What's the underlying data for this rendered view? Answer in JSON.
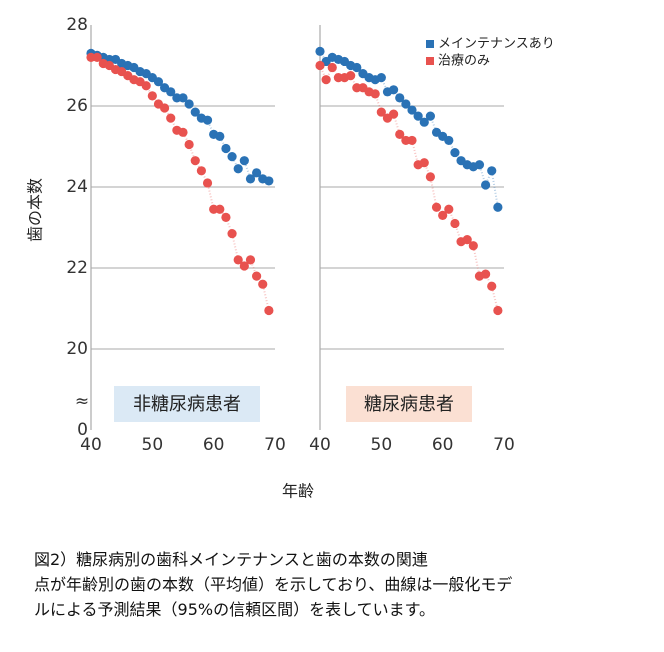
{
  "chart_data": {
    "type": "scatter",
    "ylabel": "歯の本数",
    "xlabel": "年齢",
    "ylim": [
      0,
      28
    ],
    "yticks": [
      0,
      20,
      22,
      24,
      26,
      28
    ],
    "axis_break": {
      "from": 0,
      "to": 20,
      "symbol": "≈"
    },
    "xlim": [
      40,
      70
    ],
    "xticks": [
      40,
      50,
      60,
      70
    ],
    "grid": true,
    "legend": "top-right",
    "x": [
      40,
      41,
      42,
      43,
      44,
      45,
      46,
      47,
      48,
      49,
      50,
      51,
      52,
      53,
      54,
      55,
      56,
      57,
      58,
      59,
      60,
      61,
      62,
      63,
      64,
      65,
      66,
      67,
      68,
      69
    ],
    "panels": [
      {
        "title": "非糖尿病患者",
        "box_color": "#dbe9f5",
        "series": [
          {
            "name": "メインテナンスあり",
            "color": "#2a72b5",
            "values": [
              27.3,
              27.25,
              27.2,
              27.15,
              27.15,
              27.05,
              27.0,
              26.95,
              26.85,
              26.8,
              26.7,
              26.6,
              26.45,
              26.35,
              26.2,
              26.2,
              26.05,
              25.85,
              25.7,
              25.65,
              25.3,
              25.25,
              24.95,
              24.75,
              24.45,
              24.65,
              24.2,
              24.35,
              24.2,
              24.15
            ]
          },
          {
            "name": "治療のみ",
            "color": "#e8524f",
            "values": [
              27.2,
              27.2,
              27.05,
              27.0,
              26.9,
              26.85,
              26.75,
              26.65,
              26.6,
              26.5,
              26.25,
              26.05,
              25.95,
              25.7,
              25.4,
              25.35,
              25.05,
              24.65,
              24.4,
              24.1,
              23.45,
              23.45,
              23.25,
              22.85,
              22.2,
              22.05,
              22.2,
              21.8,
              21.6,
              20.95
            ]
          }
        ]
      },
      {
        "title": "糖尿病患者",
        "box_color": "#fbe0d3",
        "series": [
          {
            "name": "メインテナンスあり",
            "color": "#2a72b5",
            "values": [
              27.35,
              27.1,
              27.2,
              27.15,
              27.1,
              27.0,
              26.95,
              26.8,
              26.7,
              26.65,
              26.7,
              26.35,
              26.4,
              26.2,
              26.05,
              25.9,
              25.75,
              25.6,
              25.75,
              25.35,
              25.25,
              25.15,
              24.85,
              24.65,
              24.55,
              24.5,
              24.55,
              24.05,
              24.4,
              23.5
            ]
          },
          {
            "name": "治療のみ",
            "color": "#e8524f",
            "values": [
              27.0,
              26.65,
              26.95,
              26.7,
              26.7,
              26.75,
              26.45,
              26.45,
              26.35,
              26.3,
              25.85,
              25.7,
              25.8,
              25.3,
              25.15,
              25.15,
              24.55,
              24.6,
              24.25,
              23.5,
              23.3,
              23.45,
              23.1,
              22.65,
              22.7,
              22.55,
              21.8,
              21.85,
              21.55,
              20.95
            ]
          }
        ]
      }
    ],
    "caption": [
      "図2）糖尿病別の歯科メインテナンスと歯の本数の関連",
      "点が年齢別の歯の本数（平均値）を示しており、曲線は一般化モデ",
      "ルによる予測結果（95%の信頼区間）を表しています。"
    ]
  }
}
